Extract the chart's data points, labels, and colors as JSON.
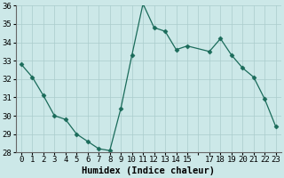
{
  "x": [
    0,
    1,
    2,
    3,
    4,
    5,
    6,
    7,
    8,
    9,
    10,
    11,
    12,
    13,
    14,
    15,
    17,
    18,
    19,
    20,
    21,
    22,
    23
  ],
  "y": [
    32.8,
    32.1,
    31.1,
    30.0,
    29.8,
    29.0,
    28.6,
    28.2,
    28.1,
    30.4,
    33.3,
    36.1,
    34.8,
    34.6,
    33.6,
    33.8,
    33.5,
    34.2,
    33.3,
    32.6,
    32.1,
    30.9,
    29.4
  ],
  "line_color": "#1a6b5a",
  "marker": "D",
  "marker_size": 2.5,
  "bg_color": "#cce8e8",
  "grid_color": "#aacccc",
  "xlabel": "Humidex (Indice chaleur)",
  "xlabel_fontsize": 7.5,
  "ylim": [
    28,
    36
  ],
  "yticks": [
    28,
    29,
    30,
    31,
    32,
    33,
    34,
    35,
    36
  ],
  "xtick_labels": [
    "0",
    "1",
    "2",
    "3",
    "4",
    "5",
    "6",
    "7",
    "8",
    "9",
    "10",
    "11",
    "12",
    "13",
    "14",
    "15",
    " ",
    "17",
    "18",
    "19",
    "20",
    "21",
    "22",
    "23"
  ],
  "xtick_positions": [
    0,
    1,
    2,
    3,
    4,
    5,
    6,
    7,
    8,
    9,
    10,
    11,
    12,
    13,
    14,
    15,
    16,
    17,
    18,
    19,
    20,
    21,
    22,
    23
  ],
  "tick_fontsize": 6.5
}
